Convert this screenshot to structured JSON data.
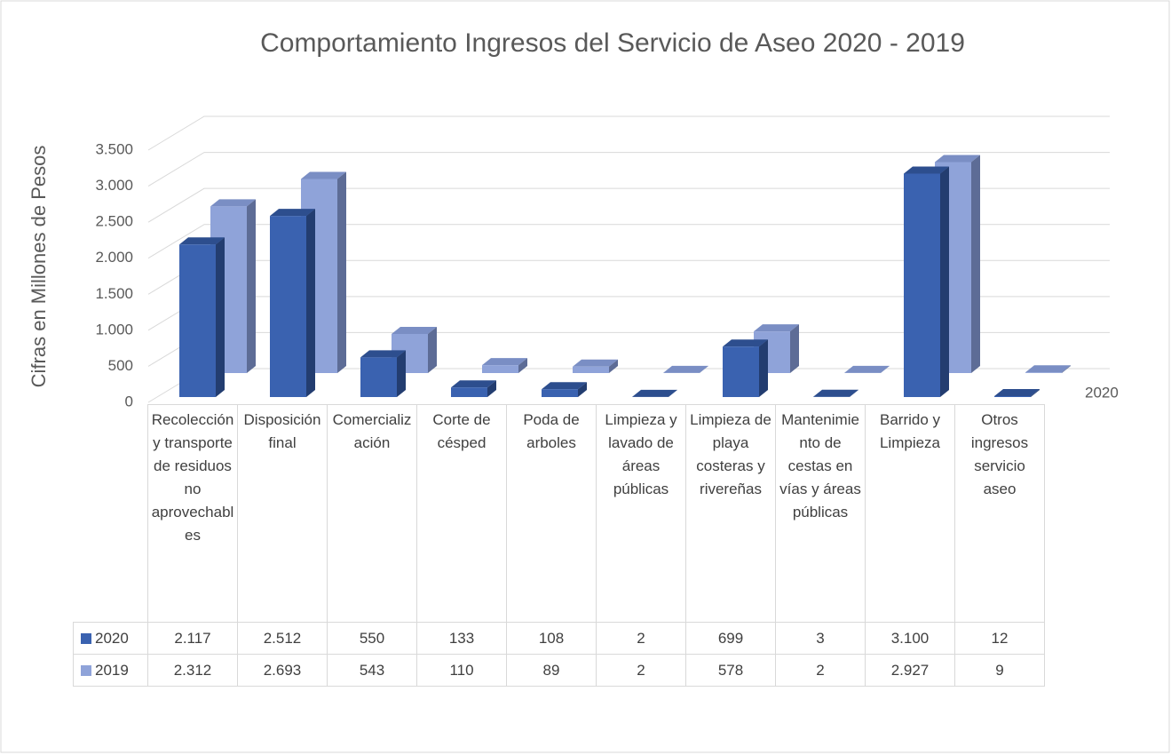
{
  "chart_data": {
    "type": "bar3d",
    "title": "Comportamiento Ingresos del Servicio de Aseo 2020 -   2019",
    "y_label": "Cifras en Millones de Pesos",
    "categories": [
      "Recolección y transporte de residuos no aprovechables",
      "Disposición final",
      "Comercialización",
      "Corte de césped",
      "Poda de arboles",
      "Limpieza y lavado de áreas públicas",
      "Limpieza de playa costeras y rivereñas",
      "Mantenimiento de cestas en vías y áreas públicas",
      "Barrido y Limpieza",
      "Otros ingresos servicio aseo"
    ],
    "series": [
      {
        "name": "2020",
        "color": "#3a62b0",
        "values": [
          2117,
          2512,
          550,
          133,
          108,
          2,
          699,
          3,
          3100,
          12
        ],
        "value_labels": [
          "2.117",
          "2.512",
          "550",
          "133",
          "108",
          "2",
          "699",
          "3",
          "3.100",
          "12"
        ]
      },
      {
        "name": "2019",
        "color": "#8fa3d9",
        "values": [
          2312,
          2693,
          543,
          110,
          89,
          2,
          578,
          2,
          2927,
          9
        ],
        "value_labels": [
          "2.312",
          "2.693",
          "543",
          "110",
          "89",
          "2",
          "578",
          "2",
          "2.927",
          "9"
        ]
      }
    ],
    "ylim": [
      0,
      3500
    ],
    "yticks": [
      0,
      500,
      {
        "value": 1000,
        "label": "1.000"
      },
      {
        "value": 1500,
        "label": "1.500"
      },
      {
        "value": 2000,
        "label": "2.000"
      },
      {
        "value": 2500,
        "label": "2.500"
      },
      {
        "value": 3000,
        "label": "3.000"
      },
      {
        "value": 3500,
        "label": "3.500"
      }
    ],
    "grid": true
  }
}
